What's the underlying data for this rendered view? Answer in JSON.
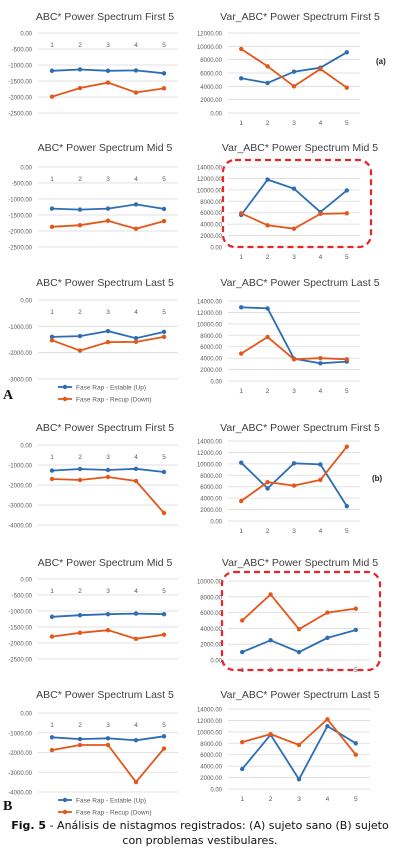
{
  "panel_letters": {
    "a": "A",
    "b": "B"
  },
  "legend": {
    "up": "Fase Rap - Estable (Up)",
    "down": "Fase Rap - Recup (Down)"
  },
  "caption": {
    "label": "Fig. 5",
    "text": " - Análisis de nistagmos registrados: (A) sujeto sano (B) sujeto con problemas vestibulares."
  },
  "colors": {
    "up": "#2e6db4",
    "down": "#e4571b",
    "highlight": "#e8262a",
    "grid": "#d9d9d9",
    "text": "#595959"
  },
  "chart_data": [
    {
      "id": "A1",
      "type": "line",
      "title": "ABC* Power Spectrum First 5",
      "categories": [
        "1",
        "2",
        "3",
        "4",
        "5"
      ],
      "ylim": [
        -2500,
        0
      ],
      "yticks": [
        "0.00",
        "-500.00",
        "-1000.00",
        "-1500.00",
        "-2000.00",
        "-2500.00"
      ],
      "series": [
        {
          "name": "Fase Rap - Estable (Up)",
          "values": [
            -1180,
            -1140,
            -1180,
            -1170,
            -1260
          ]
        },
        {
          "name": "Fase Rap - Recup (Down)",
          "values": [
            -1990,
            -1720,
            -1550,
            -1860,
            -1730
          ]
        }
      ]
    },
    {
      "id": "A2",
      "type": "line",
      "title": "Var_ABC* Power Spectrum First 5",
      "categories": [
        "1",
        "2",
        "3",
        "4",
        "5"
      ],
      "ylim": [
        0,
        12000
      ],
      "yticks": [
        "12000.00",
        "10000.00",
        "8000.00",
        "6000.00",
        "4000.00",
        "2000.00",
        "0.00"
      ],
      "tag": "(a)",
      "series": [
        {
          "name": "Fase Rap - Estable (Up)",
          "values": [
            5200,
            4500,
            6200,
            6800,
            9100
          ]
        },
        {
          "name": "Fase Rap - Recup (Down)",
          "values": [
            9600,
            7000,
            4000,
            6600,
            3800
          ]
        }
      ]
    },
    {
      "id": "A3",
      "type": "line",
      "title": "ABC* Power Spectrum Mid 5",
      "categories": [
        "1",
        "2",
        "3",
        "4",
        "5"
      ],
      "ylim": [
        -2500,
        0
      ],
      "yticks": [
        "0.00",
        "-500.00",
        "-1000.00",
        "-1500.00",
        "-2000.00",
        "-2500.00"
      ],
      "series": [
        {
          "name": "Fase Rap - Estable (Up)",
          "values": [
            -1300,
            -1330,
            -1300,
            -1170,
            -1310
          ]
        },
        {
          "name": "Fase Rap - Recup (Down)",
          "values": [
            -1870,
            -1820,
            -1680,
            -1930,
            -1690
          ]
        }
      ]
    },
    {
      "id": "A4",
      "type": "line",
      "title": "Var_ABC* Power Spectrum Mid 5",
      "categories": [
        "1",
        "2",
        "3",
        "4",
        "5"
      ],
      "ylim": [
        0,
        14000
      ],
      "yticks": [
        "14000.00",
        "12000.00",
        "10000.00",
        "8000.00",
        "6000.00",
        "4000.00",
        "2000.00",
        "0.00"
      ],
      "highlight": true,
      "series": [
        {
          "name": "Fase Rap - Estable (Up)",
          "values": [
            5600,
            11800,
            10200,
            6100,
            9900
          ]
        },
        {
          "name": "Fase Rap - Recup (Down)",
          "values": [
            5900,
            3800,
            3200,
            5800,
            5900
          ]
        }
      ]
    },
    {
      "id": "A5",
      "type": "line",
      "title": "ABC* Power Spectrum Last 5",
      "categories": [
        "1",
        "2",
        "3",
        "4",
        "5"
      ],
      "ylim": [
        -3000,
        0
      ],
      "yticks": [
        "0.00",
        "-1000.00",
        "-2000.00",
        "-3000.00"
      ],
      "show_legend": true,
      "series": [
        {
          "name": "Fase Rap - Estable (Up)",
          "values": [
            -1400,
            -1370,
            -1180,
            -1450,
            -1210
          ]
        },
        {
          "name": "Fase Rap - Recup (Down)",
          "values": [
            -1530,
            -1920,
            -1600,
            -1590,
            -1400
          ]
        }
      ]
    },
    {
      "id": "A6",
      "type": "line",
      "title": "Var_ABC* Power Spectrum Last 5",
      "categories": [
        "1",
        "2",
        "3",
        "4",
        "5"
      ],
      "ylim": [
        0,
        14000
      ],
      "yticks": [
        "14000.00",
        "12000.00",
        "10000.00",
        "8000.00",
        "6000.00",
        "4000.00",
        "2000.00",
        "0.00"
      ],
      "series": [
        {
          "name": "Fase Rap - Estable (Up)",
          "values": [
            12900,
            12700,
            3900,
            3100,
            3400
          ]
        },
        {
          "name": "Fase Rap - Recup (Down)",
          "values": [
            4800,
            7700,
            3800,
            4000,
            3800
          ]
        }
      ]
    },
    {
      "id": "B1",
      "type": "line",
      "title": "ABC* Power Spectrum First 5",
      "categories": [
        "1",
        "2",
        "3",
        "4",
        "5"
      ],
      "ylim": [
        -4000,
        0
      ],
      "yticks": [
        "0.00",
        "-1000.00",
        "-2000.00",
        "-3000.00",
        "-4000.00"
      ],
      "series": [
        {
          "name": "Fase Rap - Estable (Up)",
          "values": [
            -1280,
            -1200,
            -1250,
            -1190,
            -1350
          ]
        },
        {
          "name": "Fase Rap - Recup (Down)",
          "values": [
            -1700,
            -1750,
            -1600,
            -1800,
            -3400
          ]
        }
      ]
    },
    {
      "id": "B2",
      "type": "line",
      "title": "Var_ABC* Power Spectrum First 5",
      "categories": [
        "1",
        "2",
        "3",
        "4",
        "5"
      ],
      "ylim": [
        0,
        14000
      ],
      "yticks": [
        "14000.00",
        "12000.00",
        "10000.00",
        "8000.00",
        "6000.00",
        "4000.00",
        "2000.00",
        "0.00"
      ],
      "tag": "(b)",
      "series": [
        {
          "name": "Fase Rap - Estable (Up)",
          "values": [
            10200,
            5700,
            10100,
            9900,
            2600
          ]
        },
        {
          "name": "Fase Rap - Recup (Down)",
          "values": [
            3500,
            6800,
            6200,
            7200,
            13000
          ]
        }
      ]
    },
    {
      "id": "B3",
      "type": "line",
      "title": "ABC* Power Spectrum Mid 5",
      "categories": [
        "1",
        "2",
        "3",
        "4",
        "5"
      ],
      "ylim": [
        -2500,
        0
      ],
      "yticks": [
        "0.00",
        "-500.00",
        "-1000.00",
        "-1500.00",
        "-2000.00",
        "-2500.00"
      ],
      "series": [
        {
          "name": "Fase Rap - Estable (Up)",
          "values": [
            -1180,
            -1130,
            -1100,
            -1080,
            -1100
          ]
        },
        {
          "name": "Fase Rap - Recup (Down)",
          "values": [
            -1800,
            -1680,
            -1600,
            -1870,
            -1740
          ]
        }
      ]
    },
    {
      "id": "B4",
      "type": "line",
      "title": "Var_ABC* Power Spectrum Mid 5",
      "categories": [
        "1",
        "2",
        "3",
        "4",
        "5"
      ],
      "ylim": [
        0,
        10000
      ],
      "yticks": [
        "10000.00",
        "8000.00",
        "6000.00",
        "4000.00",
        "2000.00",
        "0.00"
      ],
      "highlight": true,
      "series": [
        {
          "name": "Fase Rap - Estable (Up)",
          "values": [
            1000,
            2500,
            1000,
            2800,
            3800
          ]
        },
        {
          "name": "Fase Rap - Recup (Down)",
          "values": [
            5000,
            8300,
            3900,
            6000,
            6500
          ]
        }
      ]
    },
    {
      "id": "B5",
      "type": "line",
      "title": "ABC* Power Spectrum Last 5",
      "categories": [
        "1",
        "2",
        "3",
        "4",
        "5"
      ],
      "ylim": [
        -4000,
        0
      ],
      "yticks": [
        "0.00",
        "-1000.00",
        "-2000.00",
        "-3000.00",
        "-4000.00"
      ],
      "show_legend": true,
      "series": [
        {
          "name": "Fase Rap - Estable (Up)",
          "values": [
            -1230,
            -1320,
            -1280,
            -1380,
            -1180
          ]
        },
        {
          "name": "Fase Rap - Recup (Down)",
          "values": [
            -1880,
            -1620,
            -1620,
            -3500,
            -1800
          ]
        }
      ]
    },
    {
      "id": "B6",
      "type": "line",
      "title": "Var_ABC* Power Spectrum Last 5",
      "categories": [
        "1",
        "2",
        "3",
        "4",
        "5"
      ],
      "ylim": [
        0,
        14000
      ],
      "yticks": [
        "14000.00",
        "12000.00",
        "10000.00",
        "8000.00",
        "6000.00",
        "4000.00",
        "2000.00",
        "0.00"
      ],
      "series": [
        {
          "name": "Fase Rap - Estable (Up)",
          "values": [
            3500,
            9500,
            1700,
            11000,
            8000
          ]
        },
        {
          "name": "Fase Rap - Recup (Down)",
          "values": [
            8200,
            9600,
            7700,
            12200,
            6000
          ]
        }
      ]
    }
  ]
}
